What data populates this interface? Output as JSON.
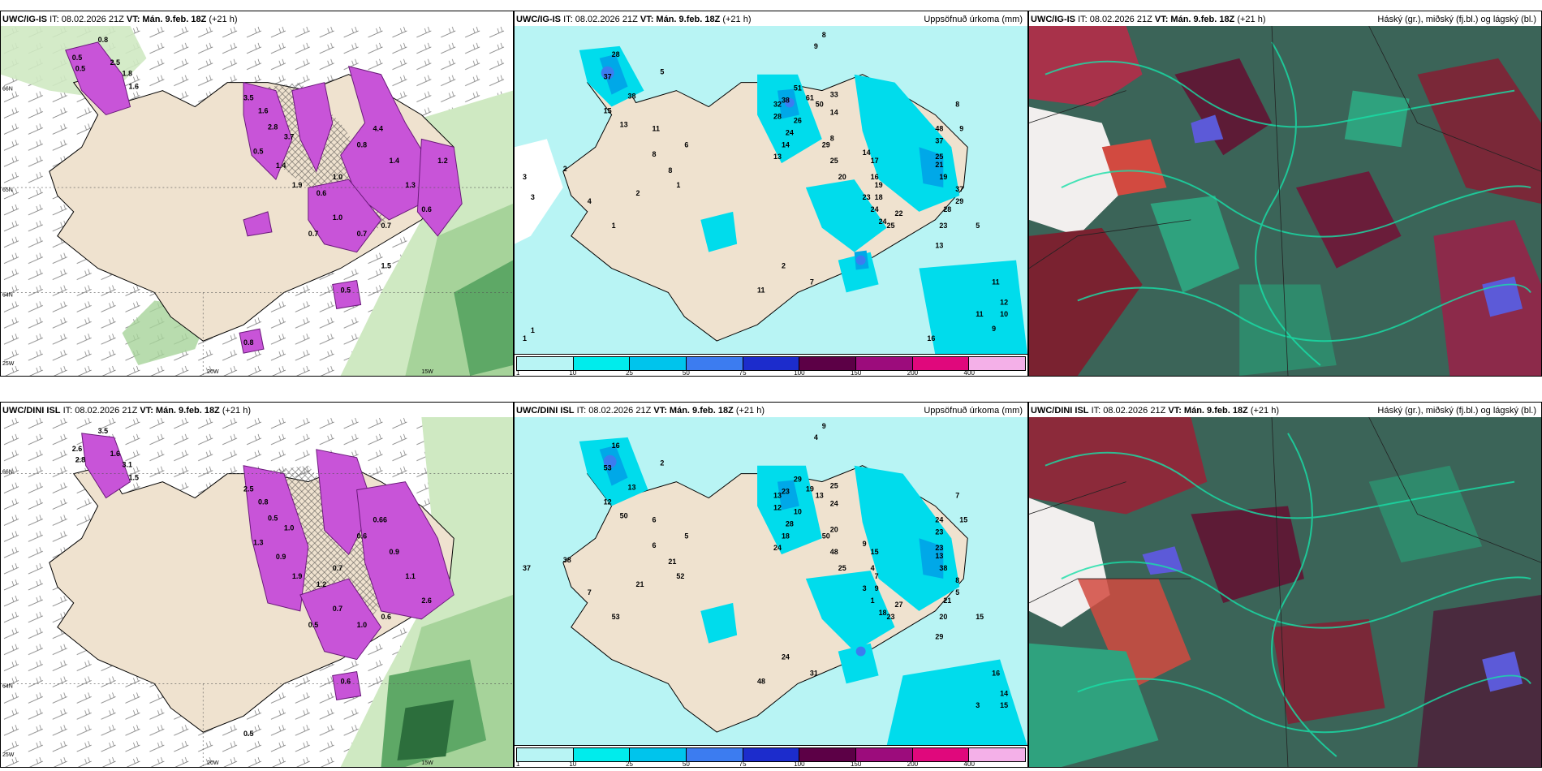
{
  "rows": [
    {
      "model": "UWC/IG-IS",
      "it": "IT: 08.02.2026 21Z",
      "vt_label": "VT:",
      "vt": "Mán. 9.feb. 18Z",
      "lead": "(+21 h)",
      "panel_snow": {
        "labels": [
          "0.5",
          "0.8",
          "0.5",
          "2.5",
          "1.8",
          "1.6",
          "3.5",
          "1.6",
          "2.8",
          "3.7",
          "0.5",
          "1.4",
          "1.9",
          "0.6",
          "1.0",
          "0.8",
          "4.4",
          "1.4",
          "1.3",
          "0.6",
          "0.7",
          "0.7",
          "1.0",
          "0.7",
          "0.5",
          "0.8",
          "1.5",
          "1.2"
        ],
        "axis": [
          "66N",
          "65N",
          "64N",
          "25W",
          "20W",
          "15W"
        ]
      },
      "panel_precip": {
        "right_title": "Uppsöfnuð úrkoma (mm)",
        "labels": [
          "9",
          "8",
          "5",
          "28",
          "37",
          "38",
          "15",
          "13",
          "3",
          "2",
          "4",
          "11",
          "6",
          "8",
          "8",
          "2",
          "1",
          "1",
          "32",
          "28",
          "26",
          "24",
          "14",
          "13",
          "38",
          "51",
          "61",
          "50",
          "33",
          "14",
          "8",
          "29",
          "25",
          "20",
          "14",
          "17",
          "16",
          "19",
          "18",
          "23",
          "24",
          "24",
          "25",
          "22",
          "48",
          "37",
          "25",
          "21",
          "28",
          "23",
          "13",
          "2",
          "7",
          "11",
          "19",
          "37",
          "29",
          "8",
          "9",
          "5",
          "11",
          "12",
          "10",
          "11",
          "9",
          "1",
          "1",
          "3",
          "16"
        ]
      },
      "panel_cloud": {
        "right_title": "Háský (gr.), miðský (fj.bl.) og lágský (bl.)"
      }
    },
    {
      "model": "UWC/DINI ISL",
      "it": "IT: 08.02.2026 21Z",
      "vt_label": "VT:",
      "vt": "Mán. 9.feb. 18Z",
      "lead": "(+21 h)",
      "panel_snow": {
        "labels": [
          "2.6",
          "3.5",
          "2.8",
          "1.6",
          "3.1",
          "1.5",
          "2.5",
          "0.8",
          "0.5",
          "1.0",
          "1.3",
          "0.9",
          "1.9",
          "1.2",
          "0.7",
          "0.6",
          "0.66",
          "0.9",
          "1.1",
          "2.6",
          "0.6",
          "1.0",
          "0.7",
          "0.5",
          "0.6",
          "0.5"
        ],
        "axis": [
          "66N",
          "64N",
          "25W",
          "20W",
          "15W"
        ]
      },
      "panel_precip": {
        "right_title": "Uppsöfnuð úrkoma (mm)",
        "labels": [
          "4",
          "9",
          "2",
          "16",
          "53",
          "13",
          "12",
          "50",
          "37",
          "38",
          "7",
          "6",
          "5",
          "6",
          "21",
          "21",
          "52",
          "53",
          "13",
          "12",
          "10",
          "28",
          "18",
          "24",
          "23",
          "29",
          "19",
          "13",
          "25",
          "24",
          "20",
          "50",
          "48",
          "25",
          "9",
          "15",
          "4",
          "7",
          "9",
          "3",
          "1",
          "18",
          "23",
          "27",
          "24",
          "23",
          "23",
          "13",
          "21",
          "20",
          "29",
          "24",
          "31",
          "48",
          "38",
          "8",
          "5",
          "7",
          "15",
          "15",
          "16",
          "14",
          "15",
          "3"
        ]
      },
      "panel_cloud": {
        "right_title": "Háský (gr.), miðský (fj.bl.) og lágský (bl.)"
      }
    }
  ],
  "colorbar": {
    "ticks": [
      "1",
      "10",
      "25",
      "50",
      "75",
      "100",
      "150",
      "200",
      "400"
    ],
    "colors": [
      "#b8f4f4",
      "#00ecec",
      "#00c4ec",
      "#3c7cf0",
      "#1c2ccc",
      "#5c0046",
      "#9c0c7c",
      "#e0087c",
      "#f4b0e8"
    ]
  }
}
